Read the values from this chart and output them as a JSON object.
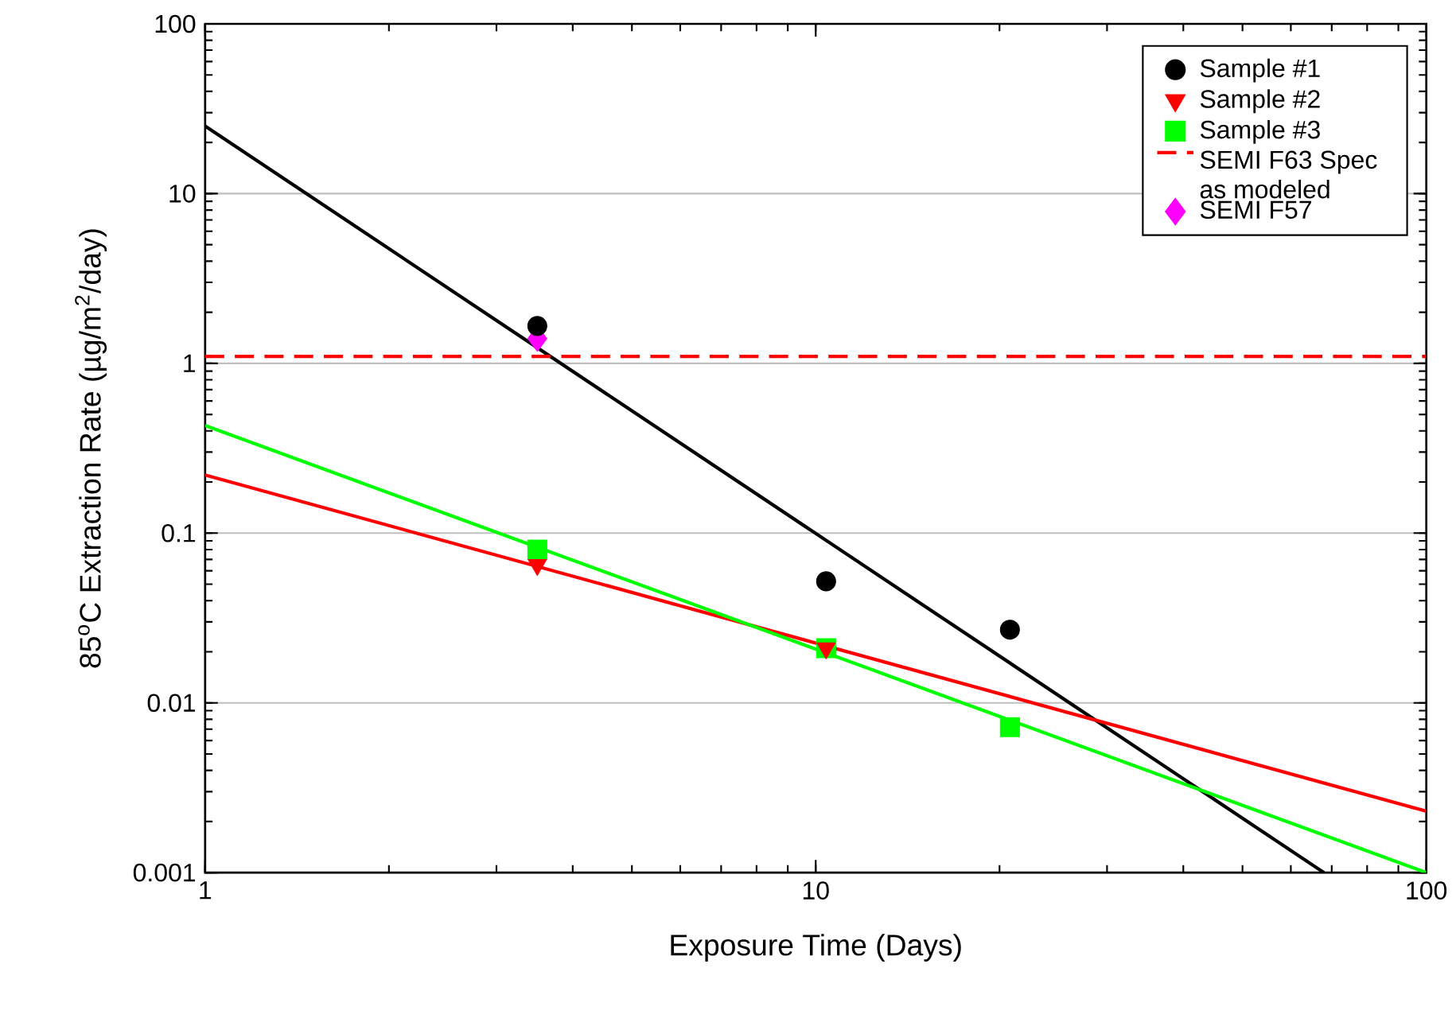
{
  "chart_data": {
    "type": "scatter",
    "xlabel": "Exposure Time (Days)",
    "ylabel": "85$^{o}$C Extraction Rate (µg/m$^{2}$/day)",
    "log": "xy",
    "grid": "y",
    "legend": "top right",
    "xlim": [
      1,
      100
    ],
    "xticks": [
      1,
      10,
      100
    ],
    "ylim": [
      0.001,
      100
    ],
    "yticks": [
      0.001,
      0.01,
      0.1,
      1,
      10,
      100
    ],
    "series": [
      {
        "name": "Sample #1",
        "marker": "circle",
        "color": "#000000",
        "x": [
          3.5,
          10.4,
          20.8
        ],
        "values": [
          1.66,
          0.052,
          0.027
        ]
      },
      {
        "name": "Sample #2",
        "marker": "triangle",
        "color": "#ff0000",
        "x": [
          3.5,
          10.4
        ],
        "values": [
          0.065,
          0.021
        ]
      },
      {
        "name": "Sample #3",
        "marker": "square",
        "color": "#00ff00",
        "x": [
          3.5,
          10.4,
          20.8
        ],
        "values": [
          0.08,
          0.021,
          0.0072
        ]
      },
      {
        "name": "SEMI F57",
        "marker": "diamond",
        "color": "#ff00ff",
        "x": [
          3.5
        ],
        "values": [
          1.4
        ]
      },
      {
        "type": "line",
        "color": "#000000",
        "x": [
          1,
          68
        ],
        "values": [
          25,
          0.001
        ]
      },
      {
        "type": "line",
        "color": "#ff0000",
        "x": [
          1,
          100
        ],
        "values": [
          0.22,
          0.0023
        ]
      },
      {
        "type": "line",
        "color": "#00ff00",
        "x": [
          1,
          100
        ],
        "values": [
          0.43,
          0.001
        ]
      }
    ],
    "ref_lines": [
      {
        "axis": "y",
        "value": 1.1,
        "label": "SEMI F63 Spec as modeled",
        "color": "#ff0000",
        "line_style": "dashed"
      }
    ]
  }
}
